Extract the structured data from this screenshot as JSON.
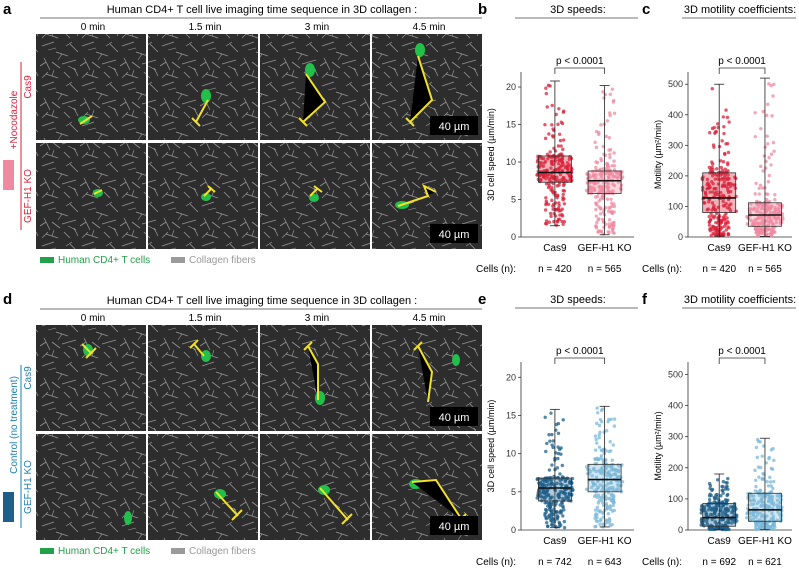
{
  "figure": {
    "colors": {
      "treated_red": "#d9213a",
      "treated_pink": "#f08aa0",
      "control_blue": "#1e5f8a",
      "control_light": "#7bb8d8",
      "tcell_green": "#22a04a",
      "collagen_gray": "#9a9a9a",
      "track_yellow": "#f2e12a"
    },
    "panels": {
      "a": {
        "letter": "a",
        "title": "Human CD4+ T cell live imaging time sequence in 3D collagen :",
        "times": [
          "0 min",
          "1.5 min",
          "3 min",
          "4.5 min"
        ],
        "condition": "+Nocodazole",
        "rows": [
          "Cas9",
          "GEF-H1 KO"
        ],
        "scalebar": "40 µm",
        "legend": [
          "Human CD4+ T cells",
          "Collagen fibers"
        ]
      },
      "b": {
        "letter": "b",
        "title": "3D speeds:"
      },
      "c": {
        "letter": "c",
        "title": "3D motility coefficients:"
      },
      "d": {
        "letter": "d",
        "title": "Human CD4+ T cell live imaging time sequence in 3D collagen :",
        "times": [
          "0 min",
          "1.5 min",
          "3 min",
          "4.5 min"
        ],
        "condition": "Control (no treatment)",
        "rows": [
          "Cas9",
          "GEF-H1 KO"
        ],
        "scalebar": "40 µm",
        "legend": [
          "Human CD4+ T cells",
          "Collagen fibers"
        ]
      },
      "e": {
        "letter": "e",
        "title": "3D speeds:"
      },
      "f": {
        "letter": "f",
        "title": "3D motility coefficients:"
      }
    }
  },
  "chart_data": [
    {
      "panel": "b",
      "type": "box",
      "title": "3D speeds:",
      "ylabel": "3D cell speed (µm/min)",
      "ylim": [
        0,
        22
      ],
      "yticks": [
        0,
        5,
        10,
        15,
        20
      ],
      "categories": [
        "Cas9",
        "GEF-H1 KO"
      ],
      "significance": "p < 0.0001",
      "cells_label": "Cells (n):",
      "counts": [
        "n = 420",
        "n = 565"
      ],
      "series": [
        {
          "name": "Cas9",
          "color": "#d9213a",
          "min": 1.5,
          "q1": 7.3,
          "median": 8.6,
          "q3": 10.8,
          "max": 20.8
        },
        {
          "name": "GEF-H1 KO",
          "color": "#f08aa0",
          "min": 0.3,
          "q1": 5.8,
          "median": 7.5,
          "q3": 8.8,
          "max": 20.2
        }
      ]
    },
    {
      "panel": "c",
      "type": "box",
      "title": "3D motility coefficients:",
      "ylabel": "Motility (µm²/min)",
      "ylim": [
        0,
        540
      ],
      "yticks": [
        0,
        100,
        200,
        300,
        400,
        500
      ],
      "categories": [
        "Cas9",
        "GEF-H1 KO"
      ],
      "significance": "p < 0.0001",
      "cells_label": "Cells (n):",
      "counts": [
        "n = 420",
        "n = 565"
      ],
      "series": [
        {
          "name": "Cas9",
          "color": "#d9213a",
          "min": 3,
          "q1": 80,
          "median": 128,
          "q3": 210,
          "max": 500
        },
        {
          "name": "GEF-H1 KO",
          "color": "#f08aa0",
          "min": 2,
          "q1": 35,
          "median": 72,
          "q3": 112,
          "max": 520
        }
      ]
    },
    {
      "panel": "e",
      "type": "box",
      "title": "3D speeds:",
      "ylabel": "3D cell speed (µm/min)",
      "ylim": [
        0,
        22
      ],
      "yticks": [
        0,
        5,
        10,
        15,
        20
      ],
      "categories": [
        "Cas9",
        "GEF-H1 KO"
      ],
      "significance": "p < 0.0001",
      "cells_label": "Cells (n):",
      "counts": [
        "n = 742",
        "n = 643"
      ],
      "series": [
        {
          "name": "Cas9",
          "color": "#1e5f8a",
          "min": 0.3,
          "q1": 3.8,
          "median": 5.5,
          "q3": 6.8,
          "max": 15.8
        },
        {
          "name": "GEF-H1 KO",
          "color": "#7bb8d8",
          "min": 0.4,
          "q1": 5.0,
          "median": 6.6,
          "q3": 8.6,
          "max": 16.2
        }
      ]
    },
    {
      "panel": "f",
      "type": "box",
      "title": "3D motility coefficients:",
      "ylabel": "Motility (µm²/min)",
      "ylim": [
        0,
        540
      ],
      "yticks": [
        0,
        100,
        200,
        300,
        400,
        500
      ],
      "categories": [
        "Cas9",
        "GEF-H1 KO"
      ],
      "significance": "p < 0.0001",
      "cells_label": "Cells (n):",
      "counts": [
        "n = 692",
        "n = 621"
      ],
      "series": [
        {
          "name": "Cas9",
          "color": "#1e5f8a",
          "min": 1,
          "q1": 12,
          "median": 40,
          "q3": 85,
          "max": 180
        },
        {
          "name": "GEF-H1 KO",
          "color": "#7bb8d8",
          "min": 1,
          "q1": 28,
          "median": 65,
          "q3": 118,
          "max": 295
        }
      ]
    }
  ]
}
